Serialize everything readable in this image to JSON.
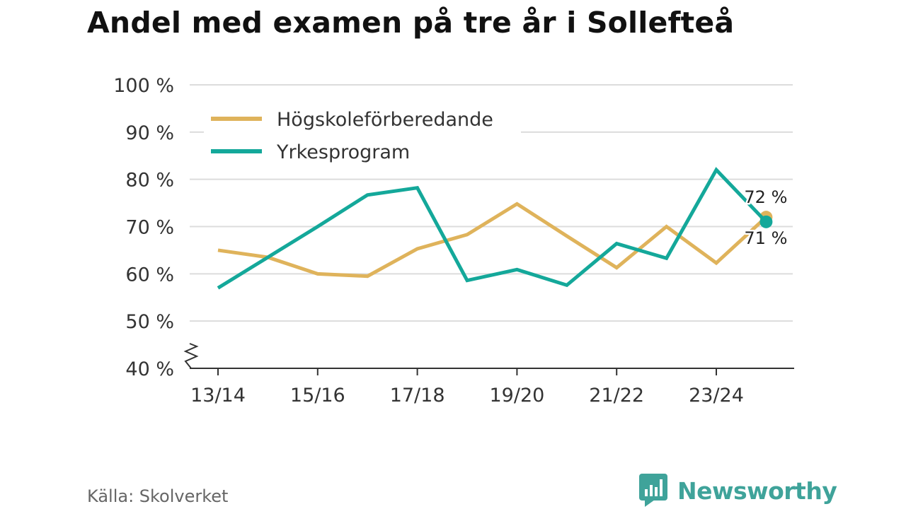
{
  "title": "Andel med examen på tre år i Sollefteå",
  "source": "Källa: Skolverket",
  "brand": {
    "name": "Newsworthy",
    "icon": "newsworthy-logo-icon",
    "color": "#3fa39a"
  },
  "colors": {
    "series_0": "#dfb35b",
    "series_1": "#14a89a",
    "grid": "#dcdcdc",
    "axis": "#333333",
    "text": "#333333"
  },
  "chart_data": {
    "type": "line",
    "title": "Andel med examen på tre år i Sollefteå",
    "xlabel": "",
    "ylabel": "",
    "x": [
      "13/14",
      "14/15",
      "15/16",
      "16/17",
      "17/18",
      "18/19",
      "19/20",
      "20/21",
      "21/22",
      "22/23",
      "23/24",
      "24/25"
    ],
    "xticklabels": [
      "13/14",
      "15/16",
      "17/18",
      "19/20",
      "21/22",
      "23/24"
    ],
    "ylim": [
      40,
      100
    ],
    "yticks": [
      40,
      50,
      60,
      70,
      80,
      90,
      100
    ],
    "yticklabels": [
      "40 %",
      "50 %",
      "60 %",
      "70 %",
      "80 %",
      "90 %",
      "100 %"
    ],
    "y_axis_break": true,
    "grid": true,
    "legend_position": "top-left",
    "series": [
      {
        "name": "Högskoleförberedande",
        "values": [
          65,
          63.5,
          60,
          59.5,
          65.3,
          68.3,
          74.8,
          68,
          61.3,
          70,
          62.3,
          72
        ],
        "end_label": "72 %"
      },
      {
        "name": "Yrkesprogram",
        "values": [
          57,
          63.5,
          70,
          76.7,
          78.2,
          58.6,
          60.9,
          57.6,
          66.4,
          63.3,
          82,
          71
        ],
        "end_label": "71 %"
      }
    ]
  }
}
